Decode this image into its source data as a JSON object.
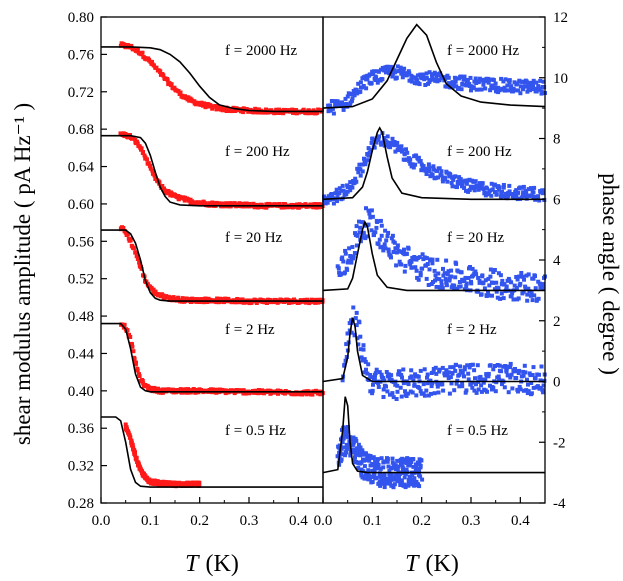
{
  "chart_data": [
    {
      "type": "scatter",
      "panel": "left",
      "ylabel": "shear modulus amplitude ( pA Hz⁻¹ )",
      "xlabel_symbol": "T",
      "xlabel_unit": "(K)",
      "xlim": [
        0.0,
        0.45
      ],
      "ylim": [
        0.28,
        0.8
      ],
      "xticks": [
        0.0,
        0.1,
        0.2,
        0.3,
        0.4
      ],
      "xtick_labels": [
        "0.0",
        "0.1",
        "0.2",
        "0.3",
        "0.4"
      ],
      "yticks": [
        0.28,
        0.32,
        0.36,
        0.4,
        0.44,
        0.48,
        0.52,
        0.56,
        0.6,
        0.64,
        0.68,
        0.72,
        0.76,
        0.8
      ],
      "ytick_labels": [
        "0.28",
        "0.32",
        "0.36",
        "0.40",
        "0.44",
        "0.48",
        "0.52",
        "0.56",
        "0.60",
        "0.64",
        "0.68",
        "0.72",
        "0.76",
        "0.80"
      ],
      "marker_color": "#ff1a1a",
      "fit_color": "#000000",
      "series": [
        {
          "name": "f = 2000 Hz",
          "data_x": [
            0.04,
            0.06,
            0.08,
            0.1,
            0.12,
            0.14,
            0.16,
            0.18,
            0.2,
            0.23,
            0.26,
            0.3,
            0.35,
            0.4,
            0.45
          ],
          "data_y": [
            0.77,
            0.768,
            0.762,
            0.752,
            0.74,
            0.728,
            0.718,
            0.711,
            0.707,
            0.703,
            0.701,
            0.7,
            0.699,
            0.699,
            0.699
          ],
          "fit_x": [
            0.0,
            0.06,
            0.1,
            0.12,
            0.14,
            0.16,
            0.18,
            0.2,
            0.22,
            0.24,
            0.27,
            0.3,
            0.35,
            0.4,
            0.45
          ],
          "fit_y": [
            0.768,
            0.768,
            0.767,
            0.765,
            0.76,
            0.752,
            0.74,
            0.726,
            0.714,
            0.706,
            0.702,
            0.7,
            0.699,
            0.699,
            0.699
          ]
        },
        {
          "name": "f = 200 Hz",
          "data_x": [
            0.04,
            0.06,
            0.07,
            0.08,
            0.09,
            0.1,
            0.11,
            0.12,
            0.13,
            0.15,
            0.18,
            0.22,
            0.27,
            0.33,
            0.4,
            0.45
          ],
          "data_y": [
            0.675,
            0.672,
            0.667,
            0.66,
            0.65,
            0.638,
            0.628,
            0.62,
            0.614,
            0.608,
            0.603,
            0.6,
            0.599,
            0.598,
            0.598,
            0.598
          ],
          "fit_x": [
            0.0,
            0.06,
            0.08,
            0.09,
            0.1,
            0.11,
            0.12,
            0.13,
            0.14,
            0.16,
            0.2,
            0.3,
            0.45
          ],
          "fit_y": [
            0.673,
            0.673,
            0.671,
            0.665,
            0.652,
            0.634,
            0.618,
            0.608,
            0.602,
            0.599,
            0.598,
            0.598,
            0.598
          ]
        },
        {
          "name": "f = 20 Hz",
          "data_x": [
            0.04,
            0.05,
            0.06,
            0.07,
            0.08,
            0.09,
            0.1,
            0.11,
            0.12,
            0.14,
            0.17,
            0.22,
            0.3,
            0.4,
            0.45
          ],
          "data_y": [
            0.575,
            0.57,
            0.56,
            0.548,
            0.533,
            0.518,
            0.51,
            0.505,
            0.502,
            0.499,
            0.497,
            0.497,
            0.496,
            0.496,
            0.496
          ],
          "fit_x": [
            0.0,
            0.05,
            0.06,
            0.07,
            0.08,
            0.09,
            0.1,
            0.11,
            0.12,
            0.14,
            0.2,
            0.45
          ],
          "fit_y": [
            0.572,
            0.572,
            0.568,
            0.558,
            0.54,
            0.518,
            0.505,
            0.499,
            0.497,
            0.496,
            0.496,
            0.496
          ]
        },
        {
          "name": "f = 2 Hz",
          "data_x": [
            0.04,
            0.05,
            0.06,
            0.07,
            0.08,
            0.09,
            0.1,
            0.12,
            0.15,
            0.2,
            0.3,
            0.4,
            0.45
          ],
          "data_y": [
            0.473,
            0.468,
            0.455,
            0.43,
            0.412,
            0.405,
            0.402,
            0.4,
            0.4,
            0.4,
            0.399,
            0.398,
            0.398
          ],
          "fit_x": [
            0.0,
            0.04,
            0.05,
            0.06,
            0.07,
            0.08,
            0.09,
            0.1,
            0.12,
            0.2,
            0.45
          ],
          "fit_y": [
            0.472,
            0.472,
            0.466,
            0.445,
            0.418,
            0.404,
            0.4,
            0.399,
            0.399,
            0.399,
            0.399
          ]
        },
        {
          "name": "f = 0.5 Hz",
          "data_x": [
            0.05,
            0.06,
            0.07,
            0.08,
            0.09,
            0.1,
            0.12,
            0.14,
            0.17,
            0.2
          ],
          "data_y": [
            0.362,
            0.348,
            0.33,
            0.315,
            0.307,
            0.303,
            0.301,
            0.3,
            0.3,
            0.3
          ],
          "fit_x": [
            0.0,
            0.03,
            0.04,
            0.05,
            0.06,
            0.07,
            0.08,
            0.1,
            0.15,
            0.45
          ],
          "fit_y": [
            0.372,
            0.372,
            0.368,
            0.345,
            0.316,
            0.302,
            0.298,
            0.297,
            0.297,
            0.297
          ]
        }
      ]
    },
    {
      "type": "scatter",
      "panel": "right",
      "ylabel": "phase angle ( degree )",
      "xlabel_symbol": "T",
      "xlabel_unit": "(K)",
      "xlim": [
        0.0,
        0.45
      ],
      "ylim": [
        -4,
        12
      ],
      "xticks": [
        0.0,
        0.1,
        0.2,
        0.3,
        0.4
      ],
      "xtick_labels": [
        "0.0",
        "0.1",
        "0.2",
        "0.3",
        "0.4"
      ],
      "yticks": [
        -4,
        -2,
        0,
        2,
        4,
        6,
        8,
        10,
        12
      ],
      "ytick_labels": [
        "-4",
        "-2",
        "0",
        "2",
        "4",
        "6",
        "8",
        "10",
        "12"
      ],
      "marker_color": "#3355ee",
      "fit_color": "#000000",
      "series": [
        {
          "name": "f = 2000 Hz",
          "data_x": [
            0.01,
            0.04,
            0.06,
            0.08,
            0.1,
            0.12,
            0.14,
            0.17,
            0.2,
            0.25,
            0.3,
            0.35,
            0.4,
            0.45
          ],
          "data_y": [
            9.0,
            9.1,
            9.4,
            9.8,
            10.0,
            10.1,
            10.2,
            10.1,
            10.0,
            9.9,
            9.8,
            9.75,
            9.7,
            9.7
          ],
          "fit_x": [
            0.0,
            0.06,
            0.1,
            0.13,
            0.15,
            0.17,
            0.19,
            0.21,
            0.23,
            0.25,
            0.28,
            0.32,
            0.38,
            0.45
          ],
          "fit_y": [
            9.0,
            9.05,
            9.3,
            9.9,
            10.6,
            11.3,
            11.75,
            11.4,
            10.5,
            9.8,
            9.4,
            9.2,
            9.1,
            9.05
          ]
        },
        {
          "name": "f = 200 Hz",
          "data_x": [
            0.0,
            0.02,
            0.05,
            0.08,
            0.1,
            0.12,
            0.14,
            0.17,
            0.2,
            0.25,
            0.3,
            0.35,
            0.4,
            0.45
          ],
          "data_y": [
            6.0,
            6.05,
            6.3,
            7.1,
            7.8,
            8.0,
            7.8,
            7.4,
            7.1,
            6.7,
            6.4,
            6.3,
            6.2,
            6.15
          ],
          "fit_x": [
            0.0,
            0.06,
            0.08,
            0.09,
            0.1,
            0.11,
            0.115,
            0.12,
            0.13,
            0.14,
            0.16,
            0.2,
            0.3,
            0.45
          ],
          "fit_y": [
            6.0,
            6.05,
            6.4,
            6.9,
            7.6,
            8.2,
            8.35,
            8.2,
            7.4,
            6.7,
            6.2,
            6.05,
            6.0,
            6.0
          ]
        },
        {
          "name": "f = 20 Hz",
          "data_x": [
            0.03,
            0.05,
            0.07,
            0.09,
            0.11,
            0.13,
            0.15,
            0.18,
            0.22,
            0.28,
            0.35,
            0.45
          ],
          "data_y": [
            3.5,
            4.0,
            4.8,
            5.3,
            5.0,
            4.6,
            4.2,
            3.9,
            3.6,
            3.4,
            3.2,
            3.1
          ],
          "fit_x": [
            0.0,
            0.05,
            0.06,
            0.07,
            0.08,
            0.085,
            0.09,
            0.1,
            0.11,
            0.13,
            0.17,
            0.25,
            0.45
          ],
          "fit_y": [
            3.0,
            3.05,
            3.4,
            4.2,
            5.0,
            5.25,
            5.1,
            4.2,
            3.5,
            3.1,
            3.0,
            3.0,
            3.0
          ]
        },
        {
          "name": "f = 2 Hz",
          "data_x": [
            0.04,
            0.05,
            0.06,
            0.07,
            0.08,
            0.09,
            0.1,
            0.12,
            0.15,
            0.2,
            0.3,
            0.4,
            0.45
          ],
          "data_y": [
            0.3,
            1.2,
            2.0,
            1.8,
            1.0,
            0.3,
            0.0,
            -0.1,
            -0.1,
            0.0,
            0.1,
            0.1,
            0.0
          ],
          "fit_x": [
            0.0,
            0.04,
            0.05,
            0.055,
            0.06,
            0.065,
            0.07,
            0.08,
            0.1,
            0.15,
            0.45
          ],
          "fit_y": [
            0.0,
            0.1,
            0.8,
            1.6,
            2.1,
            1.8,
            1.0,
            0.2,
            0.0,
            0.0,
            0.0
          ]
        },
        {
          "name": "f = 0.5 Hz",
          "data_x": [
            0.03,
            0.04,
            0.05,
            0.06,
            0.07,
            0.08,
            0.1,
            0.12,
            0.15,
            0.18,
            0.2
          ],
          "data_y": [
            -2.5,
            -2.0,
            -1.9,
            -2.1,
            -2.5,
            -2.7,
            -2.9,
            -3.0,
            -3.0,
            -3.0,
            -3.0
          ],
          "fit_x": [
            0.0,
            0.03,
            0.04,
            0.045,
            0.05,
            0.055,
            0.06,
            0.07,
            0.09,
            0.15,
            0.45
          ],
          "fit_y": [
            -3.0,
            -2.9,
            -1.6,
            -0.5,
            -0.8,
            -2.0,
            -2.7,
            -2.95,
            -3.0,
            -3.0,
            -3.0
          ]
        }
      ]
    }
  ]
}
